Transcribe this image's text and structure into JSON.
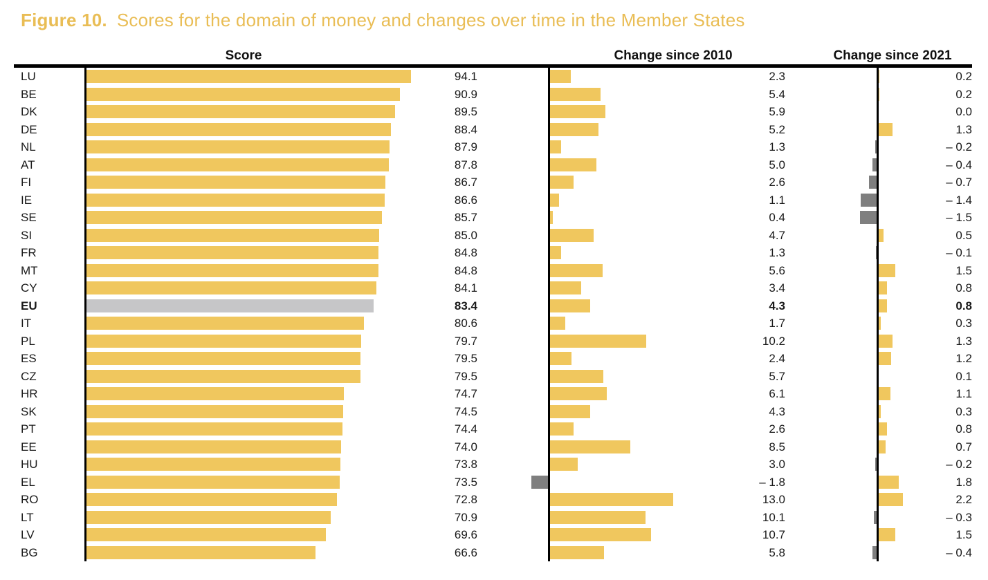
{
  "figure": {
    "label": "Figure 10.",
    "title": "Scores for the domain of money and changes over time in the Member States"
  },
  "columns": {
    "score": "Score",
    "change_2010": "Change since 2010",
    "change_2021": "Change since 2021"
  },
  "colors": {
    "bar_yellow": "#F0C75E",
    "bar_gray_highlight": "#C6C6C8",
    "bar_gray_negative": "#7F7F7F",
    "title_gold": "#E9BD55",
    "axis_black": "#000000",
    "text_black": "#1a1a1a"
  },
  "chart_data": {
    "type": "bar",
    "orientation": "horizontal",
    "panels": [
      "Score",
      "Change since 2010",
      "Change since 2021"
    ],
    "score_axis_range": [
      0,
      100
    ],
    "highlight_row": "EU",
    "negative_bar_style": "gray bar extending left of axis",
    "rows": [
      {
        "code": "LU",
        "score": 94.1,
        "score_label": "94.1",
        "change_2010": 2.3,
        "change_2010_label": "2.3",
        "change_2021": 0.2,
        "change_2021_label": "0.2",
        "highlight": false
      },
      {
        "code": "BE",
        "score": 90.9,
        "score_label": "90.9",
        "change_2010": 5.4,
        "change_2010_label": "5.4",
        "change_2021": 0.2,
        "change_2021_label": "0.2",
        "highlight": false
      },
      {
        "code": "DK",
        "score": 89.5,
        "score_label": "89.5",
        "change_2010": 5.9,
        "change_2010_label": "5.9",
        "change_2021": 0.0,
        "change_2021_label": "0.0",
        "highlight": false
      },
      {
        "code": "DE",
        "score": 88.4,
        "score_label": "88.4",
        "change_2010": 5.2,
        "change_2010_label": "5.2",
        "change_2021": 1.3,
        "change_2021_label": "1.3",
        "highlight": false
      },
      {
        "code": "NL",
        "score": 87.9,
        "score_label": "87.9",
        "change_2010": 1.3,
        "change_2010_label": "1.3",
        "change_2021": -0.2,
        "change_2021_label": "– 0.2",
        "highlight": false
      },
      {
        "code": "AT",
        "score": 87.8,
        "score_label": "87.8",
        "change_2010": 5.0,
        "change_2010_label": "5.0",
        "change_2021": -0.4,
        "change_2021_label": "– 0.4",
        "highlight": false
      },
      {
        "code": "FI",
        "score": 86.7,
        "score_label": "86.7",
        "change_2010": 2.6,
        "change_2010_label": "2.6",
        "change_2021": -0.7,
        "change_2021_label": "– 0.7",
        "highlight": false
      },
      {
        "code": "IE",
        "score": 86.6,
        "score_label": "86.6",
        "change_2010": 1.1,
        "change_2010_label": "1.1",
        "change_2021": -1.4,
        "change_2021_label": "– 1.4",
        "highlight": false
      },
      {
        "code": "SE",
        "score": 85.7,
        "score_label": "85.7",
        "change_2010": 0.4,
        "change_2010_label": "0.4",
        "change_2021": -1.5,
        "change_2021_label": "– 1.5",
        "highlight": false
      },
      {
        "code": "SI",
        "score": 85.0,
        "score_label": "85.0",
        "change_2010": 4.7,
        "change_2010_label": "4.7",
        "change_2021": 0.5,
        "change_2021_label": "0.5",
        "highlight": false
      },
      {
        "code": "FR",
        "score": 84.8,
        "score_label": "84.8",
        "change_2010": 1.3,
        "change_2010_label": "1.3",
        "change_2021": -0.1,
        "change_2021_label": "– 0.1",
        "highlight": false
      },
      {
        "code": "MT",
        "score": 84.8,
        "score_label": "84.8",
        "change_2010": 5.6,
        "change_2010_label": "5.6",
        "change_2021": 1.5,
        "change_2021_label": "1.5",
        "highlight": false
      },
      {
        "code": "CY",
        "score": 84.1,
        "score_label": "84.1",
        "change_2010": 3.4,
        "change_2010_label": "3.4",
        "change_2021": 0.8,
        "change_2021_label": "0.8",
        "highlight": false
      },
      {
        "code": "EU",
        "score": 83.4,
        "score_label": "83.4",
        "change_2010": 4.3,
        "change_2010_label": "4.3",
        "change_2021": 0.8,
        "change_2021_label": "0.8",
        "highlight": true
      },
      {
        "code": "IT",
        "score": 80.6,
        "score_label": "80.6",
        "change_2010": 1.7,
        "change_2010_label": "1.7",
        "change_2021": 0.3,
        "change_2021_label": "0.3",
        "highlight": false
      },
      {
        "code": "PL",
        "score": 79.7,
        "score_label": "79.7",
        "change_2010": 10.2,
        "change_2010_label": "10.2",
        "change_2021": 1.3,
        "change_2021_label": "1.3",
        "highlight": false
      },
      {
        "code": "ES",
        "score": 79.5,
        "score_label": "79.5",
        "change_2010": 2.4,
        "change_2010_label": "2.4",
        "change_2021": 1.2,
        "change_2021_label": "1.2",
        "highlight": false
      },
      {
        "code": "CZ",
        "score": 79.5,
        "score_label": "79.5",
        "change_2010": 5.7,
        "change_2010_label": "5.7",
        "change_2021": 0.1,
        "change_2021_label": "0.1",
        "highlight": false
      },
      {
        "code": "HR",
        "score": 74.7,
        "score_label": "74.7",
        "change_2010": 6.1,
        "change_2010_label": "6.1",
        "change_2021": 1.1,
        "change_2021_label": "1.1",
        "highlight": false
      },
      {
        "code": "SK",
        "score": 74.5,
        "score_label": "74.5",
        "change_2010": 4.3,
        "change_2010_label": "4.3",
        "change_2021": 0.3,
        "change_2021_label": "0.3",
        "highlight": false
      },
      {
        "code": "PT",
        "score": 74.4,
        "score_label": "74.4",
        "change_2010": 2.6,
        "change_2010_label": "2.6",
        "change_2021": 0.8,
        "change_2021_label": "0.8",
        "highlight": false
      },
      {
        "code": "EE",
        "score": 74.0,
        "score_label": "74.0",
        "change_2010": 8.5,
        "change_2010_label": "8.5",
        "change_2021": 0.7,
        "change_2021_label": "0.7",
        "highlight": false
      },
      {
        "code": "HU",
        "score": 73.8,
        "score_label": "73.8",
        "change_2010": 3.0,
        "change_2010_label": "3.0",
        "change_2021": -0.2,
        "change_2021_label": "– 0.2",
        "highlight": false
      },
      {
        "code": "EL",
        "score": 73.5,
        "score_label": "73.5",
        "change_2010": -1.8,
        "change_2010_label": "– 1.8",
        "change_2021": 1.8,
        "change_2021_label": "1.8",
        "highlight": false
      },
      {
        "code": "RO",
        "score": 72.8,
        "score_label": "72.8",
        "change_2010": 13.0,
        "change_2010_label": "13.0",
        "change_2021": 2.2,
        "change_2021_label": "2.2",
        "highlight": false
      },
      {
        "code": "LT",
        "score": 70.9,
        "score_label": "70.9",
        "change_2010": 10.1,
        "change_2010_label": "10.1",
        "change_2021": -0.3,
        "change_2021_label": "– 0.3",
        "highlight": false
      },
      {
        "code": "LV",
        "score": 69.6,
        "score_label": "69.6",
        "change_2010": 10.7,
        "change_2010_label": "10.7",
        "change_2021": 1.5,
        "change_2021_label": "1.5",
        "highlight": false
      },
      {
        "code": "BG",
        "score": 66.6,
        "score_label": "66.6",
        "change_2010": 5.8,
        "change_2010_label": "5.8",
        "change_2021": -0.4,
        "change_2021_label": "– 0.4",
        "highlight": false
      }
    ]
  }
}
